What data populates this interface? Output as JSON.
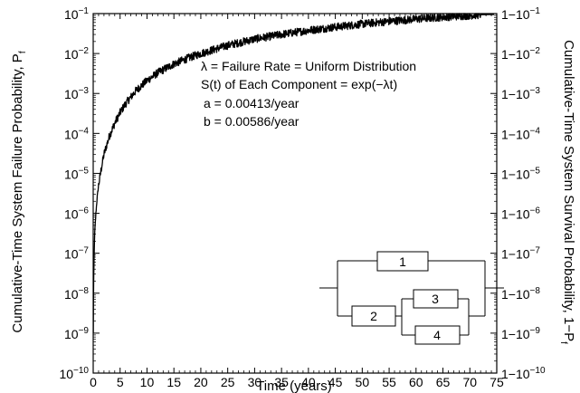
{
  "chart_data": {
    "type": "line",
    "xlabel": "Time (years)",
    "ylabel_left": "Cumulative-Time System Failure Probability, P",
    "ylabel_left_sub": "f",
    "ylabel_right": "Cumulative-Time System Survival Probability, 1−P",
    "ylabel_right_sub": "f",
    "xlim": [
      0,
      75
    ],
    "ylim": [
      1e-10,
      0.1
    ],
    "y_scale": "log",
    "x_ticks": [
      0,
      5,
      10,
      15,
      20,
      25,
      30,
      35,
      40,
      45,
      50,
      55,
      60,
      65,
      70,
      75
    ],
    "x_tick_labels": [
      "0",
      "5",
      "10",
      "15",
      "20",
      "25",
      "30",
      "35",
      "40",
      "45",
      "50",
      "55",
      "60",
      "65",
      "70",
      "75"
    ],
    "y_ticks_left": [
      {
        "base": "10",
        "exp": "−1"
      },
      {
        "base": "10",
        "exp": "−2"
      },
      {
        "base": "10",
        "exp": "−3"
      },
      {
        "base": "10",
        "exp": "−4"
      },
      {
        "base": "10",
        "exp": "−5"
      },
      {
        "base": "10",
        "exp": "−6"
      },
      {
        "base": "10",
        "exp": "−7"
      },
      {
        "base": "10",
        "exp": "−8"
      },
      {
        "base": "10",
        "exp": "−9"
      },
      {
        "base": "10",
        "exp": "−10"
      }
    ],
    "y_ticks_right": [
      {
        "base": "1−10",
        "exp": "−1"
      },
      {
        "base": "1−10",
        "exp": "−2"
      },
      {
        "base": "1−10",
        "exp": "−3"
      },
      {
        "base": "1−10",
        "exp": "−4"
      },
      {
        "base": "1−10",
        "exp": "−5"
      },
      {
        "base": "1−10",
        "exp": "−6"
      },
      {
        "base": "1−10",
        "exp": "−7"
      },
      {
        "base": "1−10",
        "exp": "−8"
      },
      {
        "base": "1−10",
        "exp": "−9"
      },
      {
        "base": "1−10",
        "exp": "−10"
      }
    ],
    "annotations": [
      "λ = Failure Rate = Uniform Distribution",
      "S(t) of Each Component = exp(−λt)",
      "a = 0.00413/year",
      "b = 0.00586/year"
    ],
    "grid": false,
    "series": [
      {
        "x": [
          0.02,
          0.05,
          0.1,
          0.2,
          0.3,
          0.5,
          0.75,
          1,
          1.5,
          2,
          3,
          4,
          5,
          6,
          8,
          10,
          12,
          15,
          18,
          20,
          25,
          30,
          35,
          40,
          45,
          50,
          55,
          60,
          65,
          70,
          72
        ],
        "y": [
          1e-09,
          6e-09,
          2.5e-08,
          1.3e-07,
          3.5e-07,
          1e-06,
          2.6e-06,
          5e-06,
          1.3e-05,
          3e-05,
          8.5e-05,
          0.00018,
          0.00033,
          0.00055,
          0.0012,
          0.0021,
          0.0033,
          0.0055,
          0.008,
          0.01,
          0.016,
          0.023,
          0.03,
          0.038,
          0.046,
          0.055,
          0.064,
          0.073,
          0.082,
          0.09,
          0.094
        ],
        "noise": "high-frequency fluctuation"
      }
    ],
    "diagram": {
      "blocks": [
        "1",
        "2",
        "3",
        "4"
      ],
      "topology": "block 1 in parallel with (block 2 in series with (block 3 parallel block 4))"
    }
  }
}
